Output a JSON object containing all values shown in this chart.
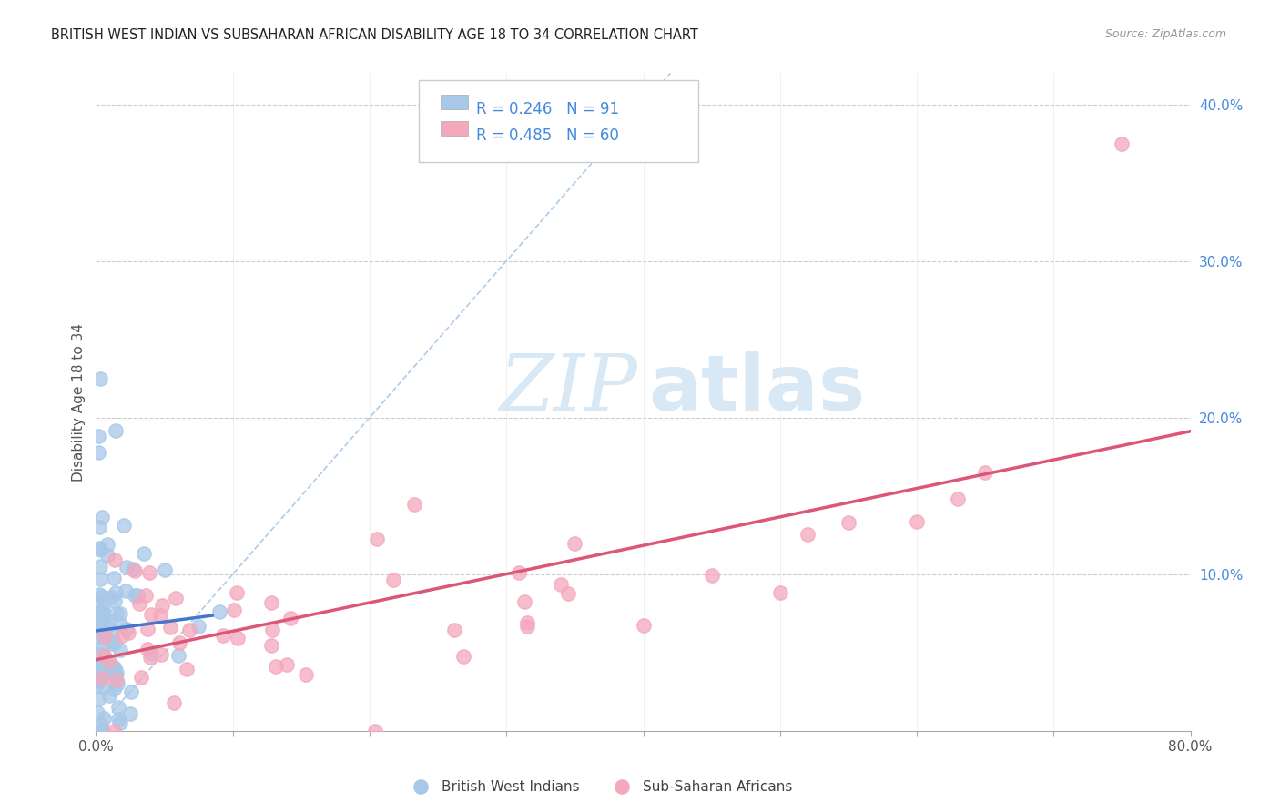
{
  "title": "BRITISH WEST INDIAN VS SUBSAHARAN AFRICAN DISABILITY AGE 18 TO 34 CORRELATION CHART",
  "source": "Source: ZipAtlas.com",
  "ylabel": "Disability Age 18 to 34",
  "xlim": [
    0.0,
    0.8
  ],
  "ylim": [
    -0.02,
    0.44
  ],
  "plot_ylim": [
    0.0,
    0.42
  ],
  "grid_color": "#cccccc",
  "background_color": "#ffffff",
  "bwi_color": "#a8c8e8",
  "ssa_color": "#f4a8bc",
  "bwi_line_color": "#4477cc",
  "ssa_line_color": "#dd5577",
  "diag_line_color": "#aaccee",
  "bwi_R": 0.246,
  "bwi_N": 91,
  "ssa_R": 0.485,
  "ssa_N": 60,
  "watermark_color": "#d8e8f4",
  "tick_color": "#4488dd",
  "legend_box_color": "#dddddd"
}
